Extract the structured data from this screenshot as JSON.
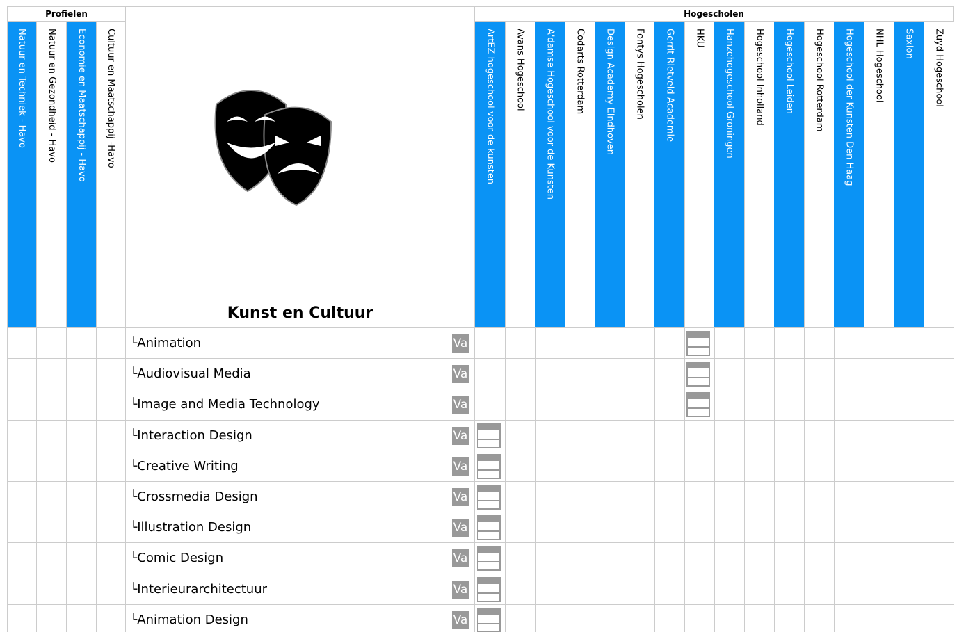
{
  "header": {
    "profiles_title": "Profielen",
    "schools_title": "Hogescholen",
    "subject": "Kunst en Cultuur"
  },
  "profiles": [
    "Natuur en Techniek - Havo",
    "Natuur en Gezondheid - Havo",
    "Economie en Maatschappij - Havo",
    "Cultuur en Maatschappij -Havo"
  ],
  "schools": [
    "ArtEZ hogeschool voor de kunsten",
    "Avans Hogeschool",
    "A'damse Hogeschool voor de Kunsten",
    "Codarts Rotterdam",
    "Design Academy Eindhoven",
    "Fontys Hogescholen",
    "Gerrit Rietveld Academie",
    "HKU",
    "Hanzehogeschool Groningen",
    "Hogeschool Inholland",
    "Hogeschool Leiden",
    "Hogeschool Rotterdam",
    "Hogeschool der Kunsten Den Haag",
    "NHL Hogeschool",
    "Saxion",
    "Zuyd Hogeschool"
  ],
  "rows": [
    {
      "name": "Animation",
      "badge": "Va",
      "offered": [
        false,
        false,
        false,
        false,
        false,
        false,
        false,
        true,
        false,
        false,
        false,
        false,
        false,
        false,
        false,
        false
      ]
    },
    {
      "name": "Audiovisual Media",
      "badge": "Va",
      "offered": [
        false,
        false,
        false,
        false,
        false,
        false,
        false,
        true,
        false,
        false,
        false,
        false,
        false,
        false,
        false,
        false
      ]
    },
    {
      "name": "Image and Media Technology",
      "badge": "Va",
      "offered": [
        false,
        false,
        false,
        false,
        false,
        false,
        false,
        true,
        false,
        false,
        false,
        false,
        false,
        false,
        false,
        false
      ]
    },
    {
      "name": "Interaction Design",
      "badge": "Va",
      "offered": [
        true,
        false,
        false,
        false,
        false,
        false,
        false,
        false,
        false,
        false,
        false,
        false,
        false,
        false,
        false,
        false
      ]
    },
    {
      "name": "Creative Writing",
      "badge": "Va",
      "offered": [
        true,
        false,
        false,
        false,
        false,
        false,
        false,
        false,
        false,
        false,
        false,
        false,
        false,
        false,
        false,
        false
      ]
    },
    {
      "name": "Crossmedia Design",
      "badge": "Va",
      "offered": [
        true,
        false,
        false,
        false,
        false,
        false,
        false,
        false,
        false,
        false,
        false,
        false,
        false,
        false,
        false,
        false
      ]
    },
    {
      "name": "Illustration Design",
      "badge": "Va",
      "offered": [
        true,
        false,
        false,
        false,
        false,
        false,
        false,
        false,
        false,
        false,
        false,
        false,
        false,
        false,
        false,
        false
      ]
    },
    {
      "name": "Comic Design",
      "badge": "Va",
      "offered": [
        true,
        false,
        false,
        false,
        false,
        false,
        false,
        false,
        false,
        false,
        false,
        false,
        false,
        false,
        false,
        false
      ]
    },
    {
      "name": "Interieurarchitectuur",
      "badge": "Va",
      "offered": [
        true,
        false,
        false,
        false,
        false,
        false,
        false,
        false,
        false,
        false,
        false,
        false,
        false,
        false,
        false,
        false
      ]
    },
    {
      "name": "Animation Design",
      "badge": "Va",
      "offered": [
        true,
        false,
        false,
        false,
        false,
        false,
        false,
        false,
        false,
        false,
        false,
        false,
        false,
        false,
        false,
        false
      ]
    }
  ]
}
